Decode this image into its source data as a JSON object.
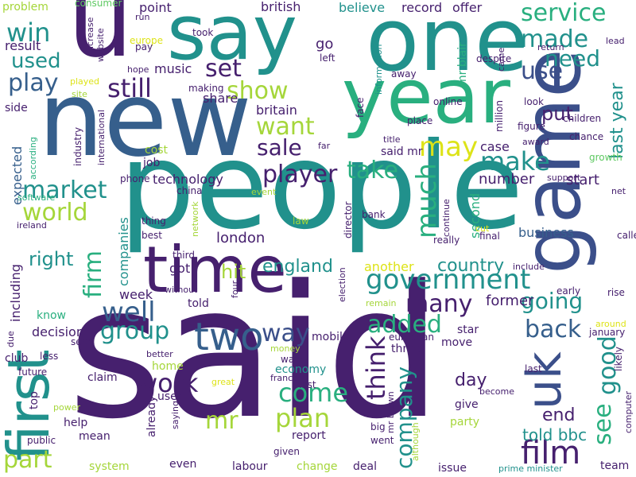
{
  "wordcloud": {
    "palette": {
      "dark_purple": "#46206e",
      "indigo": "#3b4f8a",
      "slate_blue": "#365f8c",
      "teal": "#21918c",
      "sea_green": "#29af7f",
      "green": "#5ec962",
      "lime": "#a5d63a",
      "yellow": "#dde318"
    },
    "words": [
      {
        "text": "said",
        "color": "#46206e"
      },
      {
        "text": "people",
        "color": "#21918c"
      },
      {
        "text": "new",
        "color": "#365f8c"
      },
      {
        "text": "year",
        "color": "#29af7f"
      },
      {
        "text": "one",
        "color": "#21918c"
      },
      {
        "text": "say",
        "color": "#21918c"
      },
      {
        "text": "u",
        "color": "#46206e"
      },
      {
        "text": "game",
        "color": "#3b4f8a"
      },
      {
        "text": "time",
        "color": "#46206e"
      },
      {
        "text": "first",
        "color": "#21918c"
      },
      {
        "text": "uk",
        "color": "#3b4f8a"
      },
      {
        "text": "two",
        "color": "#365f8c"
      },
      {
        "text": "government",
        "color": "#21918c"
      },
      {
        "text": "film",
        "color": "#46206e"
      },
      {
        "text": "service",
        "color": "#29af7f"
      },
      {
        "text": "made",
        "color": "#21918c"
      },
      {
        "text": "use",
        "color": "#3b4f8a"
      },
      {
        "text": "need",
        "color": "#21918c"
      },
      {
        "text": "play",
        "color": "#365f8c"
      },
      {
        "text": "still",
        "color": "#46206e"
      },
      {
        "text": "set",
        "color": "#46206e"
      },
      {
        "text": "show",
        "color": "#a5d63a"
      },
      {
        "text": "want",
        "color": "#a5d63a"
      },
      {
        "text": "sale",
        "color": "#46206e"
      },
      {
        "text": "may",
        "color": "#dde318"
      },
      {
        "text": "make",
        "color": "#21918c"
      },
      {
        "text": "take",
        "color": "#29af7f"
      },
      {
        "text": "player",
        "color": "#46206e"
      },
      {
        "text": "market",
        "color": "#21918c"
      },
      {
        "text": "world",
        "color": "#a5d63a"
      },
      {
        "text": "much",
        "color": "#29af7f"
      },
      {
        "text": "firm",
        "color": "#29af7f"
      },
      {
        "text": "win",
        "color": "#21918c"
      },
      {
        "text": "used",
        "color": "#21918c"
      },
      {
        "text": "well",
        "color": "#365f8c"
      },
      {
        "text": "group",
        "color": "#21918c"
      },
      {
        "text": "work",
        "color": "#46206e"
      },
      {
        "text": "come",
        "color": "#29af7f"
      },
      {
        "text": "plan",
        "color": "#a5d63a"
      },
      {
        "text": "mr",
        "color": "#a5d63a"
      },
      {
        "text": "way",
        "color": "#3b4f8a"
      },
      {
        "text": "added",
        "color": "#29af7f"
      },
      {
        "text": "many",
        "color": "#46206e"
      },
      {
        "text": "going",
        "color": "#21918c"
      },
      {
        "text": "back",
        "color": "#365f8c"
      },
      {
        "text": "good",
        "color": "#21918c"
      },
      {
        "text": "see",
        "color": "#29af7f"
      },
      {
        "text": "think",
        "color": "#46206e"
      },
      {
        "text": "company",
        "color": "#21918c"
      },
      {
        "text": "part",
        "color": "#a5d63a"
      },
      {
        "text": "right",
        "color": "#21918c"
      },
      {
        "text": "end",
        "color": "#46206e"
      },
      {
        "text": "told bbc",
        "color": "#21918c"
      },
      {
        "text": "day",
        "color": "#46206e"
      },
      {
        "text": "last year",
        "color": "#21918c"
      },
      {
        "text": "put",
        "color": "#46206e"
      },
      {
        "text": "country",
        "color": "#21918c"
      },
      {
        "text": "hit",
        "color": "#a5d63a"
      },
      {
        "text": "england",
        "color": "#21918c"
      },
      {
        "text": "london",
        "color": "#46206e"
      },
      {
        "text": "technology",
        "color": "#46206e"
      },
      {
        "text": "number",
        "color": "#46206e"
      },
      {
        "text": "another",
        "color": "#dde318"
      },
      {
        "text": "former",
        "color": "#46206e"
      },
      {
        "text": "business",
        "color": "#365f8c"
      },
      {
        "text": "start",
        "color": "#46206e"
      },
      {
        "text": "second",
        "color": "#29af7f"
      },
      {
        "text": "case",
        "color": "#46206e"
      },
      {
        "text": "week",
        "color": "#46206e"
      },
      {
        "text": "decision",
        "color": "#46206e"
      },
      {
        "text": "expected",
        "color": "#365f8c"
      },
      {
        "text": "including",
        "color": "#46206e"
      },
      {
        "text": "companies",
        "color": "#21918c"
      },
      {
        "text": "british",
        "color": "#46206e"
      },
      {
        "text": "record",
        "color": "#46206e"
      },
      {
        "text": "offer",
        "color": "#46206e"
      },
      {
        "text": "share",
        "color": "#46206e"
      },
      {
        "text": "point",
        "color": "#46206e"
      },
      {
        "text": "believe",
        "color": "#21918c"
      },
      {
        "text": "go",
        "color": "#46206e"
      },
      {
        "text": "music",
        "color": "#46206e"
      },
      {
        "text": "britain",
        "color": "#46206e"
      },
      {
        "text": "result",
        "color": "#46206e"
      },
      {
        "text": "problem",
        "color": "#a5d63a"
      },
      {
        "text": "consumer",
        "color": "#5ec962"
      },
      {
        "text": "increase",
        "color": "#46206e"
      },
      {
        "text": "website",
        "color": "#46206e"
      },
      {
        "text": "run",
        "color": "#46206e"
      },
      {
        "text": "europe",
        "color": "#dde318"
      },
      {
        "text": "took",
        "color": "#46206e"
      },
      {
        "text": "pay",
        "color": "#46206e"
      },
      {
        "text": "hope",
        "color": "#46206e"
      },
      {
        "text": "making",
        "color": "#46206e"
      },
      {
        "text": "played",
        "color": "#dde318"
      },
      {
        "text": "site",
        "color": "#a5d63a"
      },
      {
        "text": "left",
        "color": "#46206e"
      },
      {
        "text": "despite",
        "color": "#46206e"
      },
      {
        "text": "information",
        "color": "#21918c"
      },
      {
        "text": "came",
        "color": "#46206e"
      },
      {
        "text": "return",
        "color": "#46206e"
      },
      {
        "text": "lead",
        "color": "#46206e"
      },
      {
        "text": "away",
        "color": "#46206e"
      },
      {
        "text": "mr blair",
        "color": "#29af7f"
      },
      {
        "text": "online",
        "color": "#46206e"
      },
      {
        "text": "look",
        "color": "#46206e"
      },
      {
        "text": "million",
        "color": "#46206e"
      },
      {
        "text": "place",
        "color": "#46206e"
      },
      {
        "text": "face",
        "color": "#46206e"
      },
      {
        "text": "children",
        "color": "#46206e"
      },
      {
        "text": "side",
        "color": "#46206e"
      },
      {
        "text": "international",
        "color": "#46206e"
      },
      {
        "text": "job",
        "color": "#46206e"
      },
      {
        "text": "cost",
        "color": "#a5d63a"
      },
      {
        "text": "far",
        "color": "#46206e"
      },
      {
        "text": "title",
        "color": "#46206e"
      },
      {
        "text": "award",
        "color": "#46206e"
      },
      {
        "text": "figure",
        "color": "#46206e"
      },
      {
        "text": "chance",
        "color": "#46206e"
      },
      {
        "text": "growth",
        "color": "#5ec962"
      },
      {
        "text": "according",
        "color": "#29af7f"
      },
      {
        "text": "industry",
        "color": "#46206e"
      },
      {
        "text": "software",
        "color": "#29af7f"
      },
      {
        "text": "said mr",
        "color": "#46206e"
      },
      {
        "text": "phone",
        "color": "#46206e"
      },
      {
        "text": "china",
        "color": "#46206e"
      },
      {
        "text": "event",
        "color": "#a5d63a"
      },
      {
        "text": "director",
        "color": "#46206e"
      },
      {
        "text": "continue",
        "color": "#46206e"
      },
      {
        "text": "support",
        "color": "#46206e"
      },
      {
        "text": "net",
        "color": "#46206e"
      },
      {
        "text": "ireland",
        "color": "#46206e"
      },
      {
        "text": "thing",
        "color": "#46206e"
      },
      {
        "text": "best",
        "color": "#46206e"
      },
      {
        "text": "network",
        "color": "#a5d63a"
      },
      {
        "text": "law",
        "color": "#a5d63a"
      },
      {
        "text": "bank",
        "color": "#46206e"
      },
      {
        "text": "cut",
        "color": "#dde318"
      },
      {
        "text": "final",
        "color": "#46206e"
      },
      {
        "text": "really",
        "color": "#46206e"
      },
      {
        "text": "called",
        "color": "#46206e"
      },
      {
        "text": "third",
        "color": "#46206e"
      },
      {
        "text": "got",
        "color": "#46206e"
      },
      {
        "text": "include",
        "color": "#46206e"
      },
      {
        "text": "election",
        "color": "#46206e"
      },
      {
        "text": "told",
        "color": "#46206e"
      },
      {
        "text": "without",
        "color": "#46206e"
      },
      {
        "text": "four",
        "color": "#46206e"
      },
      {
        "text": "early",
        "color": "#46206e"
      },
      {
        "text": "rise",
        "color": "#46206e"
      },
      {
        "text": "know",
        "color": "#29af7f"
      },
      {
        "text": "remain",
        "color": "#a5d63a"
      },
      {
        "text": "mobile",
        "color": "#46206e"
      },
      {
        "text": "star",
        "color": "#46206e"
      },
      {
        "text": "around",
        "color": "#dde318"
      },
      {
        "text": "january",
        "color": "#46206e"
      },
      {
        "text": "due",
        "color": "#46206e"
      },
      {
        "text": "seen",
        "color": "#46206e"
      },
      {
        "text": "less",
        "color": "#46206e"
      },
      {
        "text": "club",
        "color": "#46206e"
      },
      {
        "text": "better",
        "color": "#46206e"
      },
      {
        "text": "money",
        "color": "#a5d63a"
      },
      {
        "text": "wales",
        "color": "#46206e"
      },
      {
        "text": "three",
        "color": "#46206e"
      },
      {
        "text": "european",
        "color": "#46206e"
      },
      {
        "text": "move",
        "color": "#46206e"
      },
      {
        "text": "likely",
        "color": "#46206e"
      },
      {
        "text": "last",
        "color": "#46206e"
      },
      {
        "text": "future",
        "color": "#46206e"
      },
      {
        "text": "home",
        "color": "#a5d63a"
      },
      {
        "text": "economy",
        "color": "#21918c"
      },
      {
        "text": "france",
        "color": "#46206e"
      },
      {
        "text": "claim",
        "color": "#46206e"
      },
      {
        "text": "great",
        "color": "#dde318"
      },
      {
        "text": "lost",
        "color": "#46206e"
      },
      {
        "text": "become",
        "color": "#46206e"
      },
      {
        "text": "computer",
        "color": "#46206e"
      },
      {
        "text": "give",
        "color": "#46206e"
      },
      {
        "text": "party",
        "color": "#a5d63a"
      },
      {
        "text": "user",
        "color": "#46206e"
      },
      {
        "text": "top",
        "color": "#46206e"
      },
      {
        "text": "power",
        "color": "#a5d63a"
      },
      {
        "text": "help",
        "color": "#46206e"
      },
      {
        "text": "mean",
        "color": "#46206e"
      },
      {
        "text": "already",
        "color": "#46206e"
      },
      {
        "text": "saying",
        "color": "#46206e"
      },
      {
        "text": "report",
        "color": "#46206e"
      },
      {
        "text": "public",
        "color": "#46206e"
      },
      {
        "text": "big",
        "color": "#46206e"
      },
      {
        "text": "mr brown",
        "color": "#46206e"
      },
      {
        "text": "went",
        "color": "#46206e"
      },
      {
        "text": "although",
        "color": "#a5d63a"
      },
      {
        "text": "even",
        "color": "#46206e"
      },
      {
        "text": "given",
        "color": "#46206e"
      },
      {
        "text": "system",
        "color": "#a5d63a"
      },
      {
        "text": "labour",
        "color": "#46206e"
      },
      {
        "text": "change",
        "color": "#a5d63a"
      },
      {
        "text": "deal",
        "color": "#46206e"
      },
      {
        "text": "issue",
        "color": "#46206e"
      },
      {
        "text": "prime minister",
        "color": "#21918c"
      },
      {
        "text": "team",
        "color": "#46206e"
      }
    ]
  }
}
